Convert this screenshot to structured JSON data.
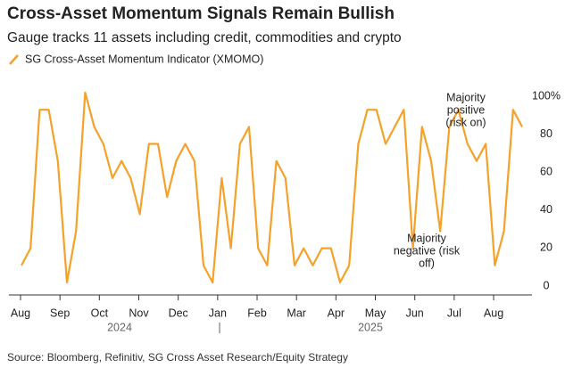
{
  "chart_data": {
    "type": "line",
    "title": "Cross-Asset Momentum Signals Remain Bullish",
    "subtitle": "Gauge tracks 11 assets including credit, commodities and crypto",
    "source": "Source: Bloomberg, Refinitiv, SG Cross Asset Research/Equity Strategy",
    "months": [
      "Aug",
      "Sep",
      "Oct",
      "Nov",
      "Dec",
      "Jan",
      "Feb",
      "Mar",
      "Apr",
      "May",
      "Jun",
      "Jul",
      "Aug"
    ],
    "years": [
      "2024",
      "2025"
    ],
    "categories": [
      null,
      null,
      null,
      null,
      null,
      null,
      null,
      null,
      null,
      null,
      null,
      null,
      null,
      null,
      null,
      null,
      null,
      null,
      null,
      null,
      null,
      null,
      null,
      null,
      null,
      null,
      null,
      null,
      null,
      null,
      null,
      null,
      null,
      null,
      null,
      null,
      null,
      null,
      null,
      null,
      null,
      null,
      null,
      null,
      null,
      null,
      null,
      null,
      null,
      null,
      null,
      null,
      null,
      null,
      null,
      null
    ],
    "series": [
      {
        "name": "SG Cross-Asset Momentum Indicator (XMOMO)",
        "color": "#f5a12a",
        "values": [
          9,
          18,
          91,
          91,
          64,
          0,
          27,
          100,
          82,
          73,
          55,
          64,
          55,
          36,
          73,
          73,
          45,
          64,
          73,
          64,
          9,
          0,
          55,
          18,
          73,
          82,
          18,
          9,
          64,
          55,
          9,
          18,
          9,
          18,
          18,
          0,
          9,
          73,
          91,
          91,
          73,
          82,
          91,
          18,
          82,
          64,
          27,
          82,
          91,
          73,
          64,
          73,
          9,
          27,
          91,
          82
        ]
      }
    ],
    "ylim": [
      0,
      100
    ],
    "yticks": [
      0,
      20,
      40,
      60,
      80,
      {
        "value": 100,
        "label": "100%"
      }
    ],
    "annotations": [
      {
        "lines": [
          "Majority",
          "positive",
          "(risk on)"
        ]
      },
      {
        "lines": [
          "Majority",
          "negative (risk",
          "off)"
        ]
      }
    ]
  }
}
